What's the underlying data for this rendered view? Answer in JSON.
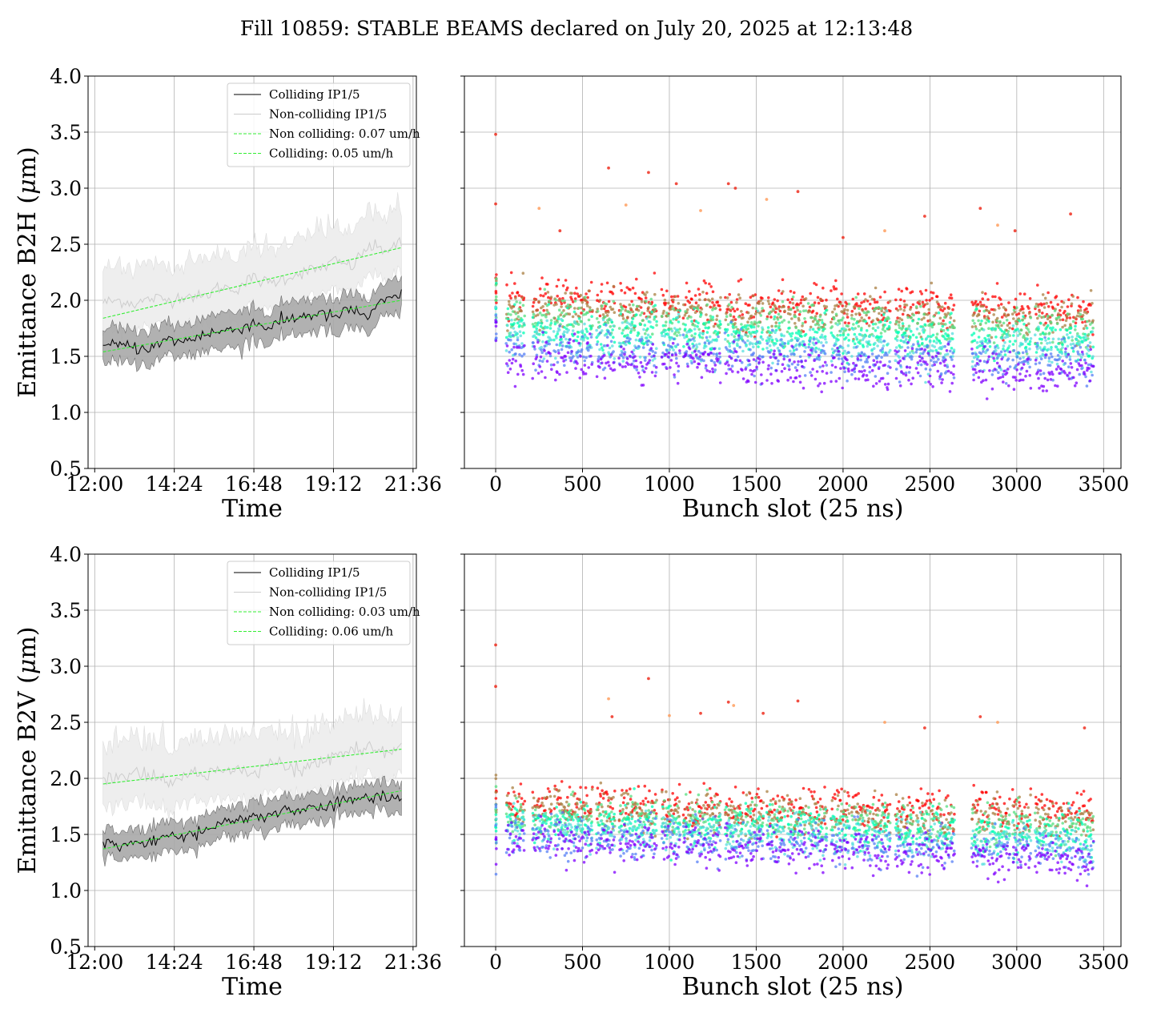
{
  "figure": {
    "title": "Fill 10859: STABLE BEAMS declared on July 20, 2025 at 12:13:48"
  },
  "chart_data": [
    {
      "type": "line",
      "panel": "top-left",
      "xlabel": "Time",
      "ylabel": "Emittance B2H (μm)",
      "ylabel_main": "Emittance B2H (",
      "ylabel_mu": "μ",
      "ylabel_tail": "m)",
      "x_unit": "hours since 12:00",
      "xlim": [
        -0.2,
        9.7
      ],
      "ylim": [
        0.5,
        4.0
      ],
      "xticks": [
        0,
        2.4,
        4.8,
        7.2,
        9.6
      ],
      "xtick_labels": [
        "12:00",
        "14:24",
        "16:48",
        "19:12",
        "21:36"
      ],
      "yticks": [
        0.5,
        1.0,
        1.5,
        2.0,
        2.5,
        3.0,
        3.5,
        4.0
      ],
      "ytick_labels": [
        "0.5",
        "1.0",
        "1.5",
        "2.0",
        "2.5",
        "3.0",
        "3.5",
        "4.0"
      ],
      "grid": true,
      "legend": {
        "placement": "upper right",
        "entries": [
          "Colliding IP1/5",
          "Non-colliding IP1/5",
          "Non colliding: 0.07 um/h",
          "Colliding: 0.05 um/h"
        ]
      },
      "series": [
        {
          "name": "Colliding IP1/5",
          "color": "#000000",
          "x": [
            0.25,
            0.75,
            1.25,
            1.75,
            2.25,
            2.75,
            3.25,
            3.75,
            4.25,
            4.75,
            5.25,
            5.75,
            6.25,
            6.75,
            7.25,
            7.75,
            8.25,
            8.75,
            9.25
          ],
          "y": [
            1.58,
            1.6,
            1.58,
            1.58,
            1.65,
            1.63,
            1.7,
            1.72,
            1.74,
            1.8,
            1.76,
            1.82,
            1.86,
            1.88,
            1.85,
            1.92,
            1.85,
            2.0,
            2.04
          ],
          "band_halfwidth": 0.15,
          "band_color": "#a9a9a9"
        },
        {
          "name": "Non-colliding IP1/5",
          "color": "#cccccc",
          "x": [
            0.25,
            0.75,
            1.25,
            1.75,
            2.25,
            2.75,
            3.25,
            3.75,
            4.25,
            4.75,
            5.25,
            5.75,
            6.25,
            6.75,
            7.25,
            7.75,
            8.25,
            8.75,
            9.25
          ],
          "y": [
            1.98,
            2.0,
            1.97,
            2.02,
            2.0,
            2.05,
            2.02,
            2.12,
            2.1,
            2.2,
            2.15,
            2.2,
            2.25,
            2.28,
            2.35,
            2.3,
            2.48,
            2.45,
            2.5
          ],
          "band_halfwidth": 0.25,
          "band_color": "#eeeeee"
        },
        {
          "name": "Non colliding: 0.07 um/h",
          "color": "#33ee33",
          "dashed": true,
          "x": [
            0.25,
            9.25
          ],
          "y": [
            1.84,
            2.47
          ]
        },
        {
          "name": "Colliding: 0.05 um/h",
          "color": "#33ee33",
          "dashed": true,
          "x": [
            0.25,
            9.25
          ],
          "y": [
            1.54,
            2.0
          ]
        }
      ]
    },
    {
      "type": "scatter",
      "panel": "top-right",
      "xlabel": "Bunch slot (25 ns)",
      "ylabel": "",
      "xlim": [
        -180,
        3600
      ],
      "ylim": [
        0.5,
        4.0
      ],
      "xticks": [
        0,
        500,
        1000,
        1500,
        2000,
        2500,
        3000,
        3500
      ],
      "xtick_labels": [
        "0",
        "500",
        "1000",
        "1500",
        "2000",
        "2500",
        "3000",
        "3500"
      ],
      "yticks": [
        0.5,
        1.0,
        1.5,
        2.0,
        2.5,
        3.0,
        3.5,
        4.0
      ],
      "grid": true,
      "colormap": "rainbow",
      "color_by": "time",
      "trains": [
        [
          60,
          165
        ],
        [
          210,
          320
        ],
        [
          335,
          440
        ],
        [
          445,
          555
        ],
        [
          580,
          685
        ],
        [
          710,
          815
        ],
        [
          820,
          925
        ],
        [
          955,
          1060
        ],
        [
          1080,
          1185
        ],
        [
          1190,
          1295
        ],
        [
          1320,
          1425
        ],
        [
          1435,
          1540
        ],
        [
          1560,
          1665
        ],
        [
          1680,
          1785
        ],
        [
          1800,
          1905
        ],
        [
          1930,
          2035
        ],
        [
          2050,
          2155
        ],
        [
          2165,
          2270
        ],
        [
          2300,
          2405
        ],
        [
          2420,
          2525
        ],
        [
          2535,
          2640
        ],
        [
          2740,
          2845
        ],
        [
          2855,
          2960
        ],
        [
          2975,
          3080
        ],
        [
          3105,
          3210
        ],
        [
          3220,
          3325
        ],
        [
          3335,
          3440
        ]
      ],
      "early_level": 2.02,
      "late_level": 1.48,
      "early_level_end": 1.92,
      "late_level_end": 1.35,
      "outliers_bunch": [
        0,
        0,
        250,
        370,
        650,
        750,
        880,
        1040,
        1180,
        1340,
        1380,
        1560,
        1740,
        2000,
        2240,
        2470,
        2790,
        2890,
        2990,
        3310
      ],
      "outliers_value": [
        3.48,
        2.86,
        2.82,
        2.62,
        3.18,
        2.85,
        3.14,
        3.04,
        2.8,
        3.04,
        3.0,
        2.9,
        2.97,
        2.56,
        2.62,
        2.75,
        2.82,
        2.67,
        2.62,
        2.77
      ]
    },
    {
      "type": "line",
      "panel": "bottom-left",
      "xlabel": "Time",
      "ylabel": "Emittance B2V (μm)",
      "ylabel_main": "Emittance B2V (",
      "ylabel_mu": "μ",
      "ylabel_tail": "m)",
      "x_unit": "hours since 12:00",
      "xlim": [
        -0.2,
        9.7
      ],
      "ylim": [
        0.5,
        4.0
      ],
      "xticks": [
        0,
        2.4,
        4.8,
        7.2,
        9.6
      ],
      "xtick_labels": [
        "12:00",
        "14:24",
        "16:48",
        "19:12",
        "21:36"
      ],
      "yticks": [
        0.5,
        1.0,
        1.5,
        2.0,
        2.5,
        3.0,
        3.5,
        4.0
      ],
      "ytick_labels": [
        "0.5",
        "1.0",
        "1.5",
        "2.0",
        "2.5",
        "3.0",
        "3.5",
        "4.0"
      ],
      "grid": true,
      "legend": {
        "placement": "upper right",
        "entries": [
          "Colliding IP1/5",
          "Non-colliding IP1/5",
          "Non colliding: 0.03 um/h",
          "Colliding: 0.06 um/h"
        ]
      },
      "series": [
        {
          "name": "Colliding IP1/5",
          "color": "#000000",
          "x": [
            0.25,
            0.75,
            1.25,
            1.75,
            2.25,
            2.75,
            3.25,
            3.75,
            4.25,
            4.75,
            5.25,
            5.75,
            6.25,
            6.75,
            7.25,
            7.75,
            8.25,
            8.75,
            9.25
          ],
          "y": [
            1.43,
            1.4,
            1.42,
            1.44,
            1.48,
            1.5,
            1.52,
            1.58,
            1.62,
            1.66,
            1.68,
            1.7,
            1.72,
            1.74,
            1.78,
            1.8,
            1.82,
            1.84,
            1.82
          ],
          "band_halfwidth": 0.13,
          "band_color": "#a9a9a9"
        },
        {
          "name": "Non-colliding IP1/5",
          "color": "#cccccc",
          "x": [
            0.25,
            0.75,
            1.25,
            1.75,
            2.25,
            2.75,
            3.25,
            3.75,
            4.25,
            4.75,
            5.25,
            5.75,
            6.25,
            6.75,
            7.25,
            7.75,
            8.25,
            8.75,
            9.25
          ],
          "y": [
            2.02,
            1.98,
            2.05,
            2.0,
            1.95,
            2.05,
            2.02,
            2.08,
            2.1,
            2.05,
            2.15,
            2.12,
            2.08,
            2.12,
            2.2,
            2.25,
            2.28,
            2.22,
            2.28
          ],
          "band_halfwidth": 0.25,
          "band_color": "#eeeeee"
        },
        {
          "name": "Non colliding: 0.03 um/h",
          "color": "#33ee33",
          "dashed": true,
          "x": [
            0.25,
            9.25
          ],
          "y": [
            1.95,
            2.26
          ]
        },
        {
          "name": "Colliding: 0.06 um/h",
          "color": "#33ee33",
          "dashed": true,
          "x": [
            0.25,
            9.25
          ],
          "y": [
            1.37,
            1.89
          ]
        }
      ]
    },
    {
      "type": "scatter",
      "panel": "bottom-right",
      "xlabel": "Bunch slot (25 ns)",
      "ylabel": "",
      "xlim": [
        -180,
        3600
      ],
      "ylim": [
        0.5,
        4.0
      ],
      "xticks": [
        0,
        500,
        1000,
        1500,
        2000,
        2500,
        3000,
        3500
      ],
      "xtick_labels": [
        "0",
        "500",
        "1000",
        "1500",
        "2000",
        "2500",
        "3000",
        "3500"
      ],
      "yticks": [
        0.5,
        1.0,
        1.5,
        2.0,
        2.5,
        3.0,
        3.5,
        4.0
      ],
      "grid": true,
      "colormap": "rainbow",
      "color_by": "time",
      "trains": [
        [
          60,
          165
        ],
        [
          210,
          320
        ],
        [
          335,
          440
        ],
        [
          445,
          555
        ],
        [
          580,
          685
        ],
        [
          710,
          815
        ],
        [
          820,
          925
        ],
        [
          955,
          1060
        ],
        [
          1080,
          1185
        ],
        [
          1190,
          1295
        ],
        [
          1320,
          1425
        ],
        [
          1435,
          1540
        ],
        [
          1560,
          1665
        ],
        [
          1680,
          1785
        ],
        [
          1800,
          1905
        ],
        [
          1930,
          2035
        ],
        [
          2050,
          2155
        ],
        [
          2165,
          2270
        ],
        [
          2300,
          2405
        ],
        [
          2420,
          2525
        ],
        [
          2535,
          2640
        ],
        [
          2740,
          2845
        ],
        [
          2855,
          2960
        ],
        [
          2975,
          3080
        ],
        [
          3105,
          3210
        ],
        [
          3220,
          3325
        ],
        [
          3335,
          3440
        ]
      ],
      "early_level": 1.78,
      "late_level": 1.45,
      "early_level_end": 1.7,
      "late_level_end": 1.27,
      "outliers_bunch": [
        0,
        0,
        650,
        670,
        880,
        1000,
        1180,
        1340,
        1370,
        1540,
        1740,
        2240,
        2470,
        2790,
        2890,
        3390
      ],
      "outliers_value": [
        3.19,
        2.82,
        2.71,
        2.55,
        2.89,
        2.56,
        2.58,
        2.68,
        2.65,
        2.58,
        2.69,
        2.5,
        2.45,
        2.55,
        2.5,
        2.45
      ]
    }
  ]
}
